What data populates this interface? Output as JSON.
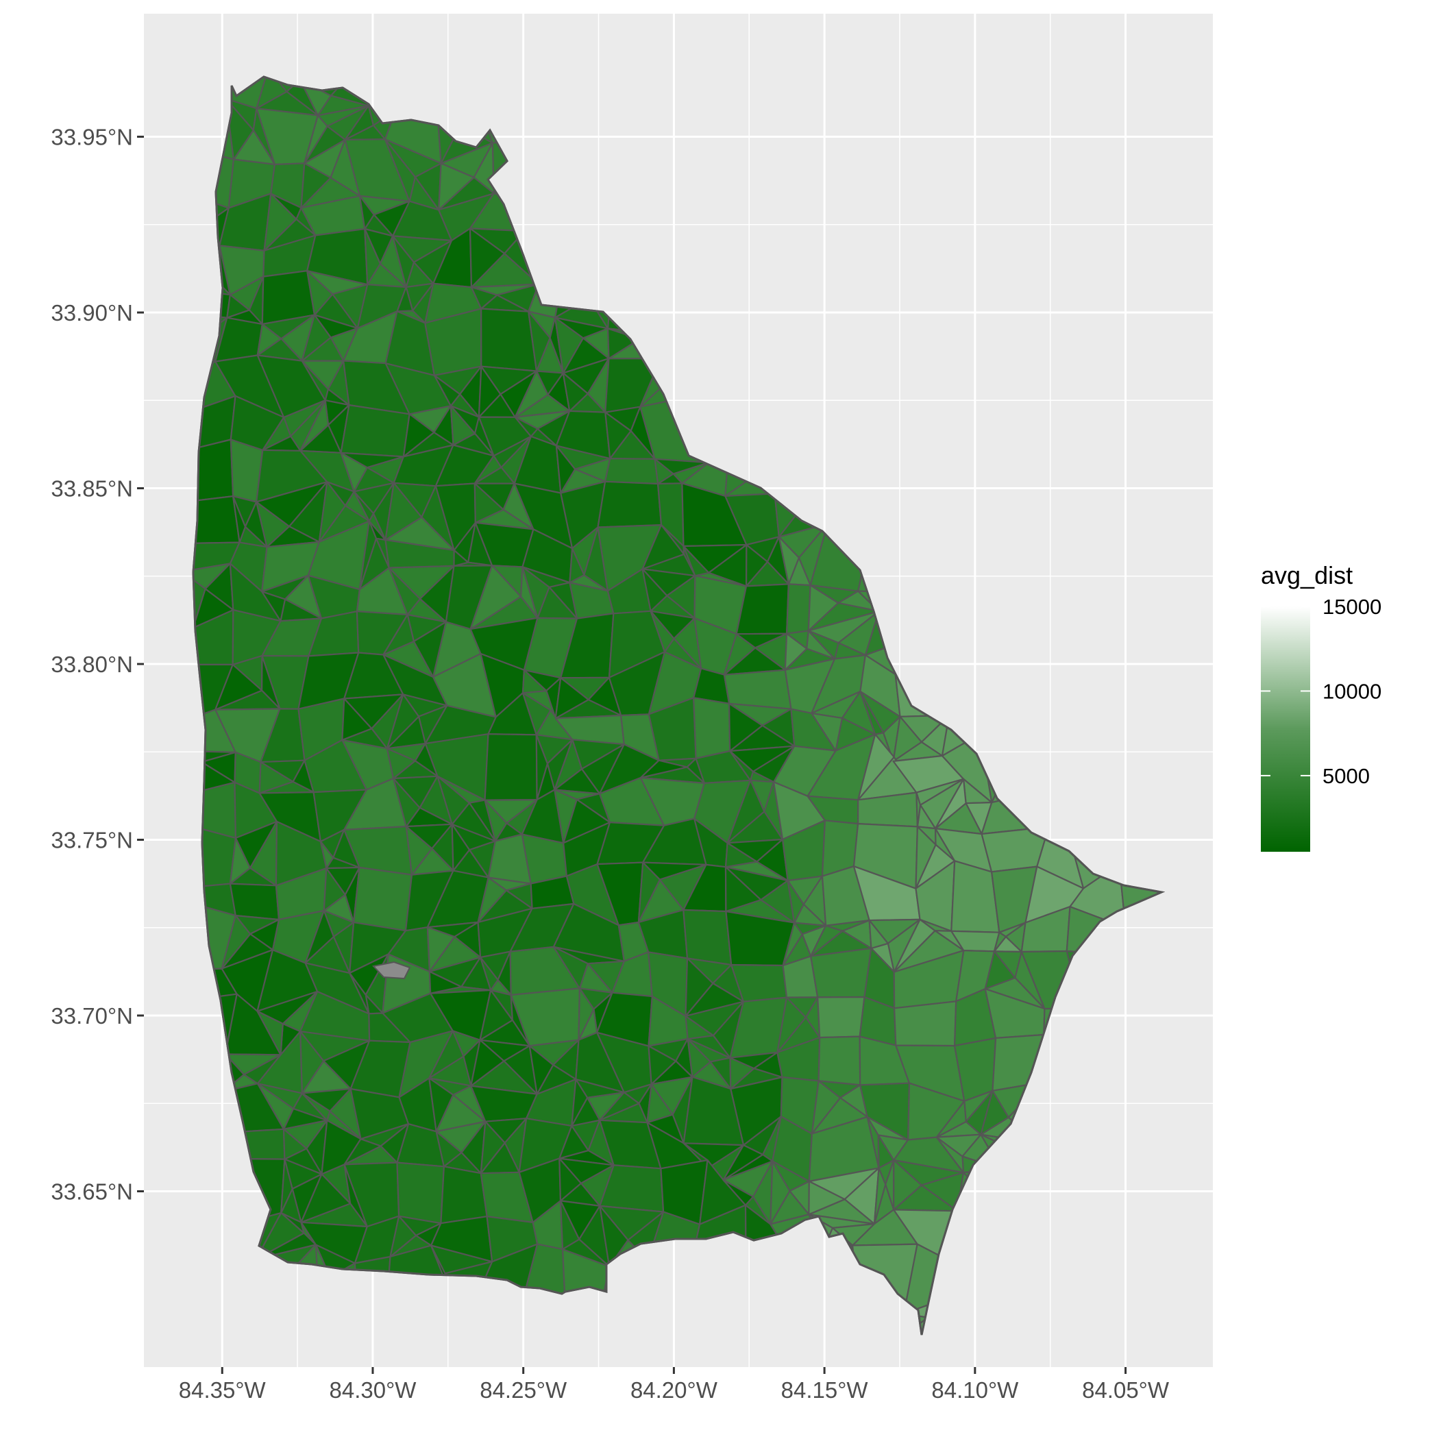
{
  "map": {
    "x_ticks": [
      "84.35°W",
      "84.30°W",
      "84.25°W",
      "84.20°W",
      "84.15°W",
      "84.10°W",
      "84.05°W"
    ],
    "y_ticks": [
      "33.95°N",
      "33.90°N",
      "33.85°N",
      "33.80°N",
      "33.75°N",
      "33.70°N",
      "33.65°N"
    ],
    "x_range": [
      -84.376,
      -84.021
    ],
    "y_range": [
      33.6,
      33.985
    ],
    "panel_background": "#ebebeb",
    "grid_color": "#ffffff",
    "boundary_color": "#555555",
    "grid": true
  },
  "legend": {
    "title": "avg_dist",
    "breaks": [
      "15000",
      "10000",
      "5000"
    ],
    "break_values": [
      15000,
      10000,
      5000
    ],
    "min": 500,
    "max": 15000,
    "low_color": "#006400",
    "high_color": "#ffffff",
    "placement": "right"
  }
}
